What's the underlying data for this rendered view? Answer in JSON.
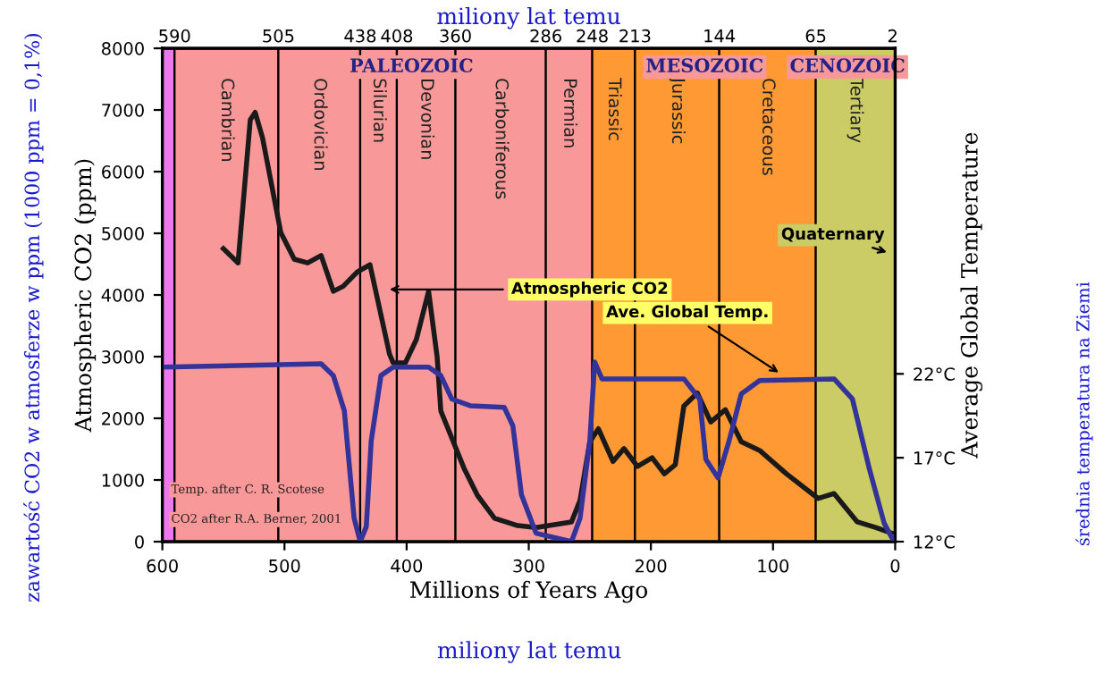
{
  "chart_data": {
    "type": "line",
    "xlabel": "Millions of Years Ago",
    "ylabel": "Atmospheric CO2 (ppm)",
    "y2label": "Average Global Temperature",
    "x2label": "miliony lat temu",
    "xlim": [
      600,
      0
    ],
    "xticks": [
      600,
      500,
      400,
      300,
      200,
      100,
      0
    ],
    "x2lim": [
      600,
      0
    ],
    "x2ticks": [
      590,
      505,
      438,
      408,
      360,
      286,
      248,
      213,
      144,
      65,
      2
    ],
    "ylim": [
      0,
      8000
    ],
    "yticks": [
      0,
      1000,
      2000,
      3000,
      4000,
      5000,
      6000,
      7000,
      8000
    ],
    "y2lim": [
      12,
      41.4
    ],
    "y2ticks": [
      {
        "value": 12,
        "label": "12°C"
      },
      {
        "value": 17,
        "label": "17°C"
      },
      {
        "value": 22,
        "label": "22°C"
      }
    ],
    "series": [
      {
        "type": "line",
        "color": "#1a1a1a",
        "x": [
          550,
          538,
          528,
          524,
          518,
          503,
          492,
          481,
          470,
          460,
          452,
          440,
          430,
          414,
          411,
          401,
          392,
          382,
          375,
          372,
          353,
          342,
          328,
          309,
          294,
          265,
          258,
          250,
          243,
          231,
          222,
          211,
          199,
          189,
          180,
          173,
          162,
          151,
          139,
          126,
          111,
          89,
          63,
          50,
          31,
          16,
          3
        ],
        "values": [
          4750,
          4520,
          6840,
          6960,
          6550,
          5010,
          4580,
          4520,
          4640,
          4060,
          4140,
          4380,
          4490,
          3040,
          2900,
          2900,
          3280,
          4060,
          2990,
          2120,
          1190,
          750,
          380,
          260,
          230,
          320,
          670,
          1620,
          1830,
          1300,
          1510,
          1220,
          1360,
          1100,
          1250,
          2200,
          2410,
          1940,
          2140,
          1620,
          1480,
          1100,
          700,
          780,
          320,
          230,
          140
        ]
      },
      {
        "type": "line",
        "color": "#333399",
        "axis": "y2",
        "x": [
          600,
          470,
          460,
          451,
          443,
          438,
          433,
          429,
          421,
          411,
          382,
          372,
          363,
          348,
          320,
          313,
          306,
          294,
          265,
          258,
          250,
          246,
          240,
          173,
          160,
          155,
          145,
          136,
          126,
          111,
          50,
          35,
          21,
          9,
          1
        ],
        "values": [
          22.4,
          22.6,
          21.9,
          19.8,
          13.4,
          12.0,
          12.9,
          18.0,
          21.9,
          22.4,
          22.4,
          21.9,
          20.5,
          20.1,
          20.0,
          18.9,
          14.8,
          12.5,
          12.0,
          13.4,
          18.0,
          22.7,
          21.7,
          21.7,
          20.5,
          16.9,
          15.8,
          18.0,
          20.8,
          21.6,
          21.7,
          20.5,
          16.3,
          13.1,
          12.0
        ]
      }
    ],
    "bands": [
      {
        "axis": "x",
        "from": 600,
        "to": 590,
        "color": "#ee77ee"
      },
      {
        "axis": "x",
        "from": 590,
        "to": 505,
        "label": "Cambrian",
        "color": "#f89898"
      },
      {
        "axis": "x",
        "from": 505,
        "to": 438,
        "label": "Ordovician",
        "color": "#f89898"
      },
      {
        "axis": "x",
        "from": 438,
        "to": 408,
        "label": "Silurian",
        "color": "#f89898"
      },
      {
        "axis": "x",
        "from": 408,
        "to": 360,
        "label": "Devonian",
        "color": "#f89898"
      },
      {
        "axis": "x",
        "from": 360,
        "to": 286,
        "label": "Carboniferous",
        "color": "#f89898"
      },
      {
        "axis": "x",
        "from": 286,
        "to": 248,
        "label": "Permian",
        "color": "#f89898"
      },
      {
        "axis": "x",
        "from": 248,
        "to": 213,
        "label": "Triassic",
        "color": "#ff9933"
      },
      {
        "axis": "x",
        "from": 213,
        "to": 144,
        "label": "Jurassic",
        "color": "#ff9933"
      },
      {
        "axis": "x",
        "from": 144,
        "to": 65,
        "label": "Cretaceous",
        "color": "#ff9933"
      },
      {
        "axis": "x",
        "from": 65,
        "to": 0,
        "label": "Tertiary",
        "color": "#cccc66"
      }
    ],
    "annotations": [
      "PALEOZOIC",
      "MESOZOIC",
      "CENOZOIC",
      {
        "text": "Quaternary",
        "x": 3,
        "y": 4670
      },
      {
        "text": "Atmospheric CO2",
        "x": 418,
        "y": 4090
      },
      {
        "text": "Ave. Global Temp.",
        "x": 92,
        "y": 2700
      },
      "Temp. after C. R. Scotese",
      "CO2 after R.A. Berner, 2001",
      "miliony lat temu",
      "zawartość CO2 w atmosferze w ppm (1000 ppm = 0,1%)",
      "średnia temperatura na Ziemi"
    ]
  }
}
